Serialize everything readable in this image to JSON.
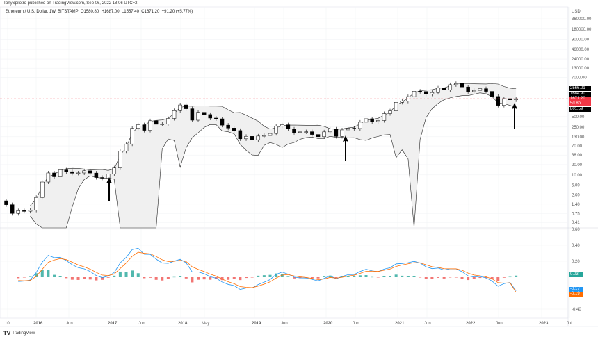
{
  "header": {
    "published": "TonySpilotro published on TradingView.com, Sep 06, 2022 18:06 UTC+2",
    "symbol": "Ethereum / U.S. Dollar, 1W, BITSTAMP",
    "open": "O1580.80",
    "high": "H1687.00",
    "low": "L1557.40",
    "close": "C1671.20",
    "change": "+91.20 (+5.77%)"
  },
  "footer": {
    "brand": "TradingView",
    "logo_icon": "tradingview-logo-icon"
  },
  "colors": {
    "up": "#ffffff",
    "down": "#000000",
    "price_line": "#f23645",
    "macd": "#2196f3",
    "signal": "#ff6d00",
    "hist_pos": "#26a69a",
    "hist_neg": "#ef5350",
    "band_fill": "#f0f0f0"
  },
  "chart_data": [
    {
      "type": "candlestick",
      "title": "",
      "currency": "USD",
      "scale": "log",
      "y_ticks": [
        "360000.00",
        "180000.00",
        "90000.00",
        "46000.00",
        "24000.00",
        "13000.00",
        "7000.00",
        "500.00",
        "250.00",
        "130.00",
        "70.00",
        "38.00",
        "20.00",
        "10.00",
        "5.00",
        "2.60",
        "1.40",
        "0.75",
        "0.41"
      ],
      "x_ticks": [
        "10",
        "2016",
        "Jun",
        "2017",
        "Jun",
        "2018",
        "May",
        "2019",
        "Jun",
        "2020",
        "Jun",
        "2021",
        "Jun",
        "2022",
        "Jun",
        "2023",
        "Jul"
      ],
      "price_tags": [
        {
          "value": "2566.21",
          "color": "#000000"
        },
        {
          "value": "1684.90",
          "color": "#000000"
        },
        {
          "value": "1671.20",
          "sub": "5d 8h",
          "color": "#f23645"
        },
        {
          "value": "801.59",
          "color": "#000000"
        }
      ],
      "annotations": [
        "arrow-up 2017-03",
        "arrow-up 2020-06",
        "arrow-up 2022-09"
      ],
      "dates": [
        "2015-08",
        "2015-09",
        "2015-10",
        "2015-11",
        "2015-12",
        "2016-01",
        "2016-02",
        "2016-03",
        "2016-04",
        "2016-05",
        "2016-06",
        "2016-07",
        "2016-08",
        "2016-09",
        "2016-10",
        "2016-11",
        "2016-12",
        "2017-01",
        "2017-02",
        "2017-03",
        "2017-04",
        "2017-05",
        "2017-06",
        "2017-07",
        "2017-08",
        "2017-09",
        "2017-10",
        "2017-11",
        "2017-12",
        "2018-01",
        "2018-02",
        "2018-03",
        "2018-04",
        "2018-05",
        "2018-06",
        "2018-07",
        "2018-08",
        "2018-09",
        "2018-10",
        "2018-11",
        "2018-12",
        "2019-01",
        "2019-02",
        "2019-03",
        "2019-04",
        "2019-05",
        "2019-06",
        "2019-07",
        "2019-08",
        "2019-09",
        "2019-10",
        "2019-11",
        "2019-12",
        "2020-01",
        "2020-02",
        "2020-03",
        "2020-04",
        "2020-05",
        "2020-06",
        "2020-07",
        "2020-08",
        "2020-09",
        "2020-10",
        "2020-11",
        "2020-12",
        "2021-01",
        "2021-02",
        "2021-03",
        "2021-04",
        "2021-05",
        "2021-06",
        "2021-07",
        "2021-08",
        "2021-09",
        "2021-10",
        "2021-11",
        "2021-12",
        "2022-01",
        "2022-02",
        "2022-03",
        "2022-04",
        "2022-05",
        "2022-06",
        "2022-07",
        "2022-08",
        "2022-09"
      ],
      "close": [
        1.35,
        0.75,
        0.9,
        0.87,
        0.93,
        2.2,
        6.2,
        11.4,
        8.8,
        14,
        12.4,
        11.2,
        11.4,
        13.2,
        11.3,
        8.4,
        8.0,
        10.7,
        16,
        50,
        80,
        230,
        290,
        200,
        380,
        300,
        305,
        445,
        750,
        1100,
        850,
        395,
        670,
        577,
        455,
        433,
        283,
        233,
        197,
        113,
        133,
        106,
        136,
        141,
        162,
        268,
        290,
        218,
        172,
        180,
        182,
        151,
        130,
        180,
        218,
        133,
        206,
        231,
        226,
        345,
        435,
        360,
        386,
        615,
        737,
        1314,
        1416,
        1919,
        2773,
        2707,
        2275,
        2536,
        3433,
        3000,
        4288,
        4630,
        3680,
        2688,
        2920,
        3280,
        2730,
        1940,
        1070,
        1680,
        1550,
        1671.2
      ]
    },
    {
      "type": "macd",
      "y_ticks": [
        "0.60",
        "0.40",
        "0.20",
        "-0.40"
      ],
      "last": {
        "histogram": "0.03",
        "macd": "-0.17",
        "signal": "-0.19"
      }
    }
  ]
}
